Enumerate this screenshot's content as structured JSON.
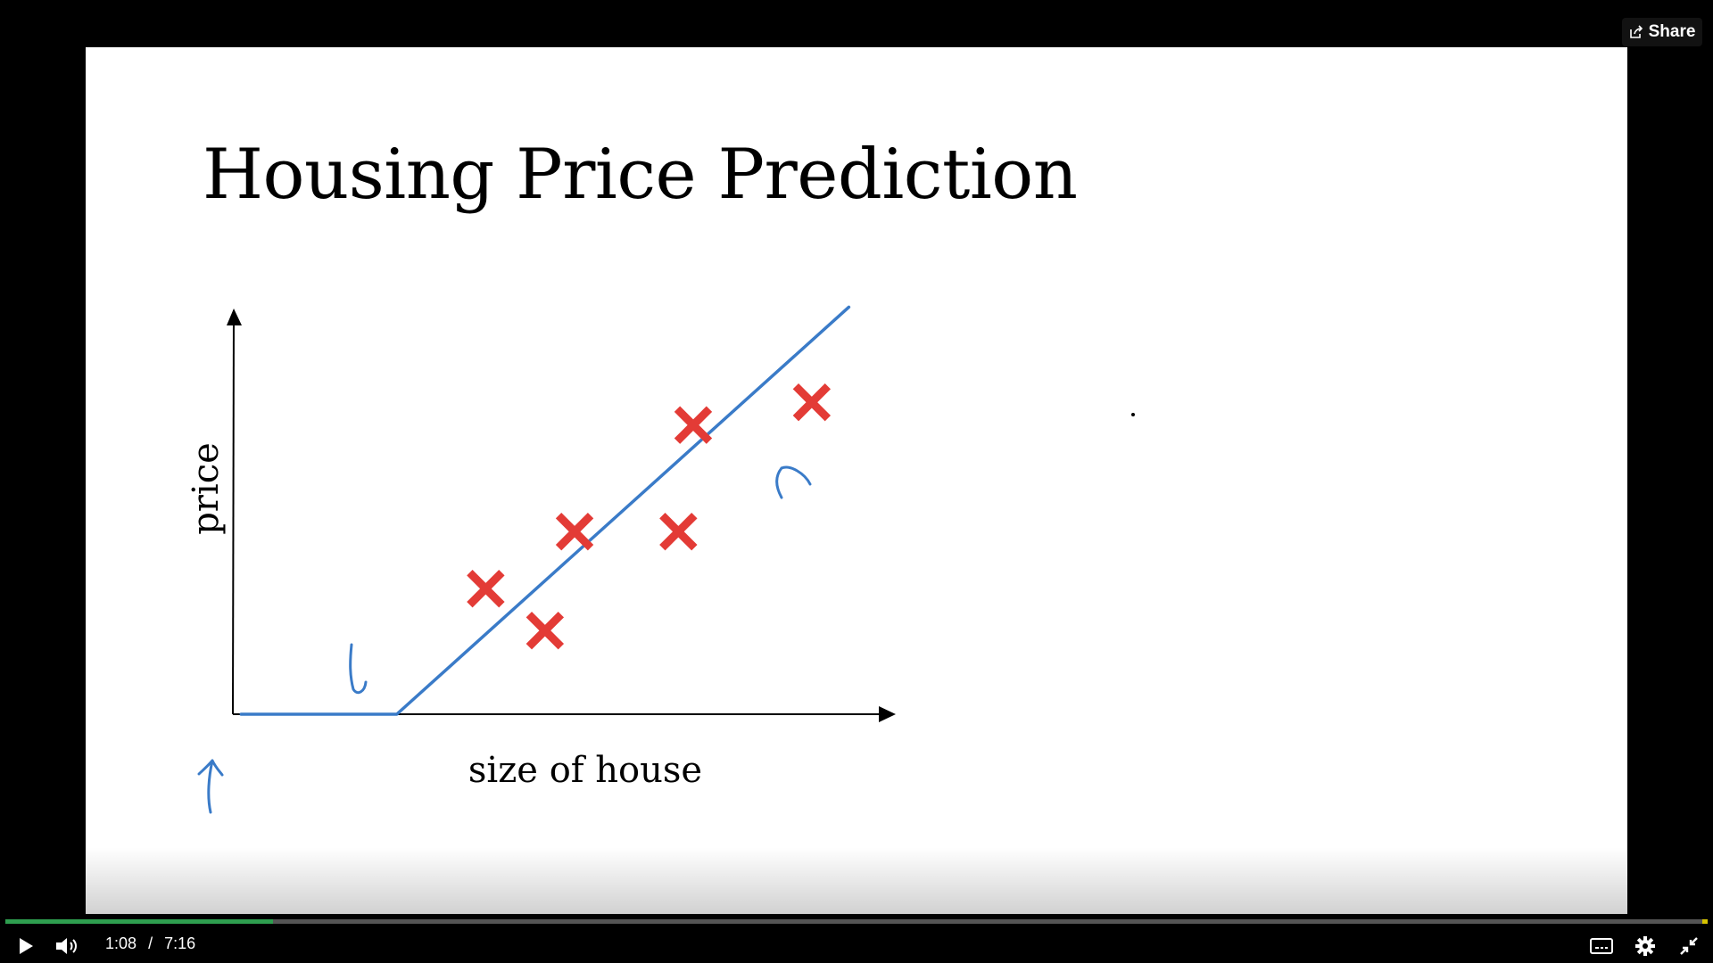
{
  "slide": {
    "title": "Housing Price Prediction",
    "chart_data": {
      "type": "scatter",
      "title": "Housing Price Prediction",
      "xlabel": "size of house",
      "ylabel": "price",
      "points": [
        {
          "x": 3.4,
          "y": 3.3
        },
        {
          "x": 4.2,
          "y": 2.2
        },
        {
          "x": 4.6,
          "y": 4.8
        },
        {
          "x": 6.0,
          "y": 4.8
        },
        {
          "x": 6.2,
          "y": 7.6
        },
        {
          "x": 7.8,
          "y": 8.2
        }
      ],
      "fit_line": [
        {
          "x": 0.1,
          "y": 0.0
        },
        {
          "x": 2.2,
          "y": 0.0
        },
        {
          "x": 8.3,
          "y": 10.7
        }
      ],
      "xlim": [
        0,
        8.5
      ],
      "ylim": [
        0,
        10.5
      ],
      "marker_color": "#e33b36",
      "line_color": "#3a7bc8"
    }
  },
  "player": {
    "share_label": "Share",
    "current_time": "1:08",
    "separator": "/",
    "duration": "7:16",
    "progress": 0.157
  }
}
